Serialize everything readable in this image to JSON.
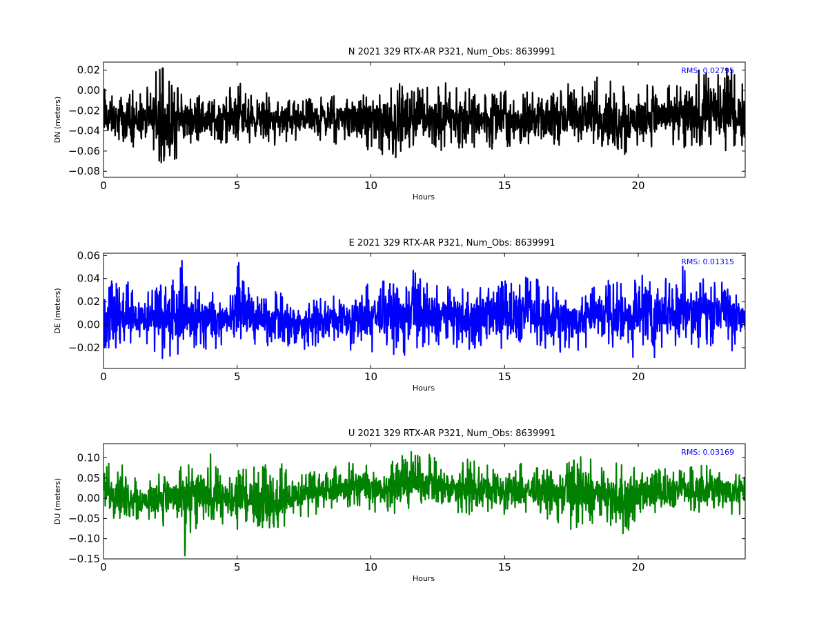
{
  "chart_data": [
    {
      "type": "line",
      "title": "N 2021 329 RTX-AR  P321, Num_Obs: 8639991",
      "xlabel": "Hours",
      "ylabel": "DN (meters)",
      "color": "#000000",
      "xlim": [
        0,
        24
      ],
      "ylim": [
        -0.086,
        0.028
      ],
      "xticks": [
        0,
        5,
        10,
        15,
        20
      ],
      "xtick_labels": [
        "0",
        "5",
        "10",
        "15",
        "20"
      ],
      "yticks": [
        -0.08,
        -0.06,
        -0.04,
        -0.02,
        0.0,
        0.02
      ],
      "ytick_labels": [
        "−0.08",
        "−0.06",
        "−0.04",
        "−0.02",
        "0.00",
        "0.02"
      ],
      "rms_label": "RMS:  0.02795",
      "series": [
        {
          "x": [
            0.0,
            0.5,
            1.0,
            1.5,
            2.0,
            2.5,
            3.0,
            3.5,
            4.0,
            4.5,
            5.0,
            5.5,
            6.0,
            6.5,
            7.0,
            7.5,
            8.0,
            8.5,
            9.0,
            9.5,
            10.0,
            10.5,
            11.0,
            11.5,
            12.0,
            12.5,
            13.0,
            13.5,
            14.0,
            14.5,
            15.0,
            15.5,
            16.0,
            16.5,
            17.0,
            17.5,
            18.0,
            18.5,
            19.0,
            19.5,
            20.0,
            20.5,
            21.0,
            21.5,
            22.0,
            22.5,
            23.0,
            23.5,
            24.0
          ],
          "mean": [
            -0.028,
            -0.03,
            -0.029,
            -0.031,
            -0.03,
            -0.032,
            -0.029,
            -0.027,
            -0.03,
            -0.028,
            -0.027,
            -0.029,
            -0.028,
            -0.03,
            -0.029,
            -0.03,
            -0.027,
            -0.028,
            -0.026,
            -0.028,
            -0.027,
            -0.029,
            -0.03,
            -0.028,
            -0.027,
            -0.028,
            -0.026,
            -0.029,
            -0.028,
            -0.03,
            -0.028,
            -0.029,
            -0.027,
            -0.03,
            -0.028,
            -0.029,
            -0.026,
            -0.027,
            -0.028,
            -0.029,
            -0.028,
            -0.026,
            -0.027,
            -0.025,
            -0.026,
            -0.025,
            -0.026,
            -0.027,
            -0.026
          ],
          "max": [
            0.02,
            -0.005,
            0.003,
            -0.002,
            0.027,
            0.018,
            0.0,
            -0.003,
            0.002,
            0.005,
            0.01,
            0.0,
            -0.002,
            -0.002,
            -0.005,
            -0.008,
            -0.005,
            0.0,
            0.002,
            -0.003,
            -0.002,
            0.003,
            0.008,
            0.0,
            0.008,
            0.005,
            0.01,
            0.0,
            0.005,
            -0.003,
            0.0,
            -0.003,
            0.0,
            -0.002,
            0.0,
            0.01,
            0.008,
            0.015,
            0.01,
            0.005,
            0.0,
            0.008,
            0.012,
            0.008,
            0.018,
            0.022,
            0.025,
            0.022,
            0.005
          ],
          "min": [
            -0.055,
            -0.05,
            -0.055,
            -0.06,
            -0.07,
            -0.086,
            -0.06,
            -0.055,
            -0.055,
            -0.058,
            -0.052,
            -0.055,
            -0.05,
            -0.055,
            -0.052,
            -0.05,
            -0.055,
            -0.05,
            -0.058,
            -0.06,
            -0.06,
            -0.065,
            -0.068,
            -0.065,
            -0.055,
            -0.062,
            -0.055,
            -0.06,
            -0.055,
            -0.06,
            -0.058,
            -0.055,
            -0.06,
            -0.055,
            -0.058,
            -0.055,
            -0.06,
            -0.055,
            -0.058,
            -0.065,
            -0.06,
            -0.058,
            -0.052,
            -0.055,
            -0.06,
            -0.06,
            -0.062,
            -0.06,
            -0.058
          ]
        }
      ]
    },
    {
      "type": "line",
      "title": "E 2021 329 RTX-AR  P321, Num_Obs: 8639991",
      "xlabel": "Hours",
      "ylabel": "DE (meters)",
      "color": "#0000ff",
      "xlim": [
        0,
        24
      ],
      "ylim": [
        -0.038,
        0.062
      ],
      "xticks": [
        0,
        5,
        10,
        15,
        20
      ],
      "xtick_labels": [
        "0",
        "5",
        "10",
        "15",
        "20"
      ],
      "yticks": [
        -0.02,
        0.0,
        0.02,
        0.04,
        0.06
      ],
      "ytick_labels": [
        "−0.02",
        "0.00",
        "0.02",
        "0.04",
        "0.06"
      ],
      "rms_label": "RMS:  0.01315",
      "series": [
        {
          "x": [
            0.0,
            0.5,
            1.0,
            1.5,
            2.0,
            2.5,
            3.0,
            3.5,
            4.0,
            4.5,
            5.0,
            5.5,
            6.0,
            6.5,
            7.0,
            7.5,
            8.0,
            8.5,
            9.0,
            9.5,
            10.0,
            10.5,
            11.0,
            11.5,
            12.0,
            12.5,
            13.0,
            13.5,
            14.0,
            14.5,
            15.0,
            15.5,
            16.0,
            16.5,
            17.0,
            17.5,
            18.0,
            18.5,
            19.0,
            19.5,
            20.0,
            20.5,
            21.0,
            21.5,
            22.0,
            22.5,
            23.0,
            23.5,
            24.0
          ],
          "mean": [
            0.004,
            0.008,
            0.005,
            0.006,
            0.004,
            0.005,
            0.007,
            0.006,
            0.005,
            0.006,
            0.012,
            0.006,
            0.005,
            0.004,
            0.003,
            0.002,
            0.004,
            0.005,
            0.006,
            0.005,
            0.008,
            0.009,
            0.007,
            0.01,
            0.008,
            0.009,
            0.008,
            0.006,
            0.007,
            0.008,
            0.007,
            0.008,
            0.009,
            0.008,
            0.007,
            0.006,
            0.005,
            0.008,
            0.01,
            0.009,
            0.01,
            0.012,
            0.011,
            0.012,
            0.013,
            0.012,
            0.013,
            0.012,
            0.008
          ],
          "max": [
            0.025,
            0.05,
            0.035,
            0.03,
            0.032,
            0.045,
            0.062,
            0.032,
            0.035,
            0.025,
            0.058,
            0.03,
            0.028,
            0.03,
            0.025,
            0.02,
            0.022,
            0.025,
            0.025,
            0.035,
            0.04,
            0.038,
            0.035,
            0.054,
            0.038,
            0.035,
            0.038,
            0.03,
            0.035,
            0.038,
            0.04,
            0.038,
            0.045,
            0.035,
            0.038,
            0.032,
            0.03,
            0.035,
            0.04,
            0.038,
            0.042,
            0.058,
            0.045,
            0.055,
            0.042,
            0.04,
            0.038,
            0.036,
            0.012
          ],
          "min": [
            -0.022,
            -0.032,
            -0.02,
            -0.018,
            -0.025,
            -0.038,
            -0.022,
            -0.02,
            -0.033,
            -0.015,
            -0.01,
            -0.018,
            -0.022,
            -0.025,
            -0.033,
            -0.025,
            -0.02,
            -0.018,
            -0.02,
            -0.025,
            -0.03,
            -0.022,
            -0.028,
            -0.025,
            -0.022,
            -0.018,
            -0.02,
            -0.022,
            -0.02,
            -0.018,
            -0.025,
            -0.022,
            -0.025,
            -0.02,
            -0.028,
            -0.025,
            -0.02,
            -0.018,
            -0.025,
            -0.03,
            -0.028,
            -0.035,
            -0.022,
            -0.02,
            -0.022,
            -0.018,
            -0.022,
            -0.033,
            -0.02
          ]
        }
      ]
    },
    {
      "type": "line",
      "title": "U 2021 329 RTX-AR  P321, Num_Obs: 8639991",
      "xlabel": "Hours",
      "ylabel": "DU (meters)",
      "color": "#008000",
      "xlim": [
        0,
        24
      ],
      "ylim": [
        -0.15,
        0.135
      ],
      "xticks": [
        0,
        5,
        10,
        15,
        20
      ],
      "xtick_labels": [
        "0",
        "5",
        "10",
        "15",
        "20"
      ],
      "yticks": [
        -0.15,
        -0.1,
        -0.05,
        0.0,
        0.05,
        0.1
      ],
      "ytick_labels": [
        "−0.15",
        "−0.10",
        "−0.05",
        "0.00",
        "0.05",
        "0.10"
      ],
      "rms_label": "RMS:  0.03169",
      "series": [
        {
          "x": [
            0.0,
            0.5,
            1.0,
            1.5,
            2.0,
            2.5,
            3.0,
            3.5,
            4.0,
            4.5,
            5.0,
            5.5,
            6.0,
            6.5,
            7.0,
            7.5,
            8.0,
            8.5,
            9.0,
            9.5,
            10.0,
            10.5,
            11.0,
            11.5,
            12.0,
            12.5,
            13.0,
            13.5,
            14.0,
            14.5,
            15.0,
            15.5,
            16.0,
            16.5,
            17.0,
            17.5,
            18.0,
            18.5,
            19.0,
            19.5,
            20.0,
            20.5,
            21.0,
            21.5,
            22.0,
            22.5,
            23.0,
            23.5,
            24.0
          ],
          "mean": [
            0.02,
            0.015,
            0.005,
            -0.005,
            0.005,
            0.01,
            0.0,
            0.015,
            0.005,
            -0.01,
            -0.01,
            0.0,
            -0.01,
            -0.02,
            0.005,
            0.01,
            0.015,
            0.02,
            0.025,
            0.03,
            0.03,
            0.025,
            0.03,
            0.04,
            0.035,
            0.03,
            0.03,
            0.025,
            0.02,
            0.025,
            0.02,
            0.015,
            0.02,
            0.01,
            0.015,
            0.02,
            0.015,
            0.01,
            0.0,
            -0.005,
            0.005,
            0.01,
            0.01,
            0.015,
            0.02,
            0.02,
            0.025,
            0.02,
            0.015
          ],
          "max": [
            0.08,
            0.1,
            0.06,
            0.04,
            0.06,
            0.06,
            0.1,
            0.08,
            0.11,
            0.06,
            0.07,
            0.08,
            0.09,
            0.09,
            0.08,
            0.06,
            0.07,
            0.08,
            0.09,
            0.1,
            0.09,
            0.08,
            0.1,
            0.135,
            0.12,
            0.1,
            0.08,
            0.1,
            0.09,
            0.08,
            0.09,
            0.1,
            0.08,
            0.07,
            0.08,
            0.1,
            0.11,
            0.09,
            0.08,
            0.1,
            0.08,
            0.07,
            0.08,
            0.07,
            0.08,
            0.09,
            0.1,
            0.08,
            0.06
          ],
          "min": [
            -0.02,
            -0.06,
            -0.05,
            -0.06,
            -0.07,
            -0.08,
            -0.15,
            -0.07,
            -0.06,
            -0.08,
            -0.08,
            -0.06,
            -0.09,
            -0.105,
            -0.06,
            -0.05,
            -0.04,
            -0.03,
            -0.02,
            -0.03,
            -0.04,
            -0.03,
            -0.04,
            -0.03,
            -0.02,
            -0.04,
            -0.04,
            -0.05,
            -0.04,
            -0.05,
            -0.04,
            -0.05,
            -0.04,
            -0.05,
            -0.06,
            -0.09,
            -0.07,
            -0.06,
            -0.07,
            -0.09,
            -0.05,
            -0.04,
            -0.04,
            -0.03,
            -0.04,
            -0.03,
            -0.03,
            -0.04,
            -0.04
          ]
        }
      ]
    }
  ]
}
